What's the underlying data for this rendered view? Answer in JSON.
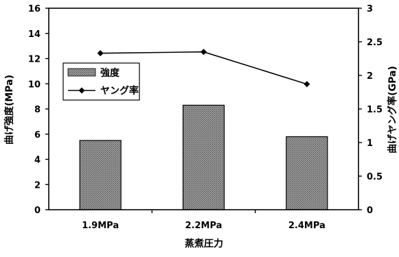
{
  "chart_data": {
    "type": "bar",
    "categories": [
      "1.9MPa",
      "2.2MPa",
      "2.4MPa"
    ],
    "series": [
      {
        "name": "強度",
        "type": "bar",
        "axis": "left",
        "values": [
          5.5,
          8.3,
          5.8
        ],
        "color": "#8a8a8a"
      },
      {
        "name": "ヤング率",
        "type": "line",
        "axis": "right",
        "values": [
          2.33,
          2.35,
          1.87
        ],
        "color": "#000000",
        "marker": "diamond"
      }
    ],
    "xlabel": "蒸煮圧力",
    "ylabel": "曲げ強度(MPa)",
    "ylabel_right": "曲げヤング率(GPa)",
    "ylim": [
      0,
      16
    ],
    "ylim_right": [
      0,
      3
    ],
    "yticks": [
      "0",
      "2",
      "4",
      "6",
      "8",
      "10",
      "12",
      "14",
      "16"
    ],
    "yticks_right": [
      "0",
      "0.5",
      "1",
      "1.5",
      "2",
      "2.5",
      "3"
    ],
    "legend_position": "upper-left",
    "grid": false
  }
}
